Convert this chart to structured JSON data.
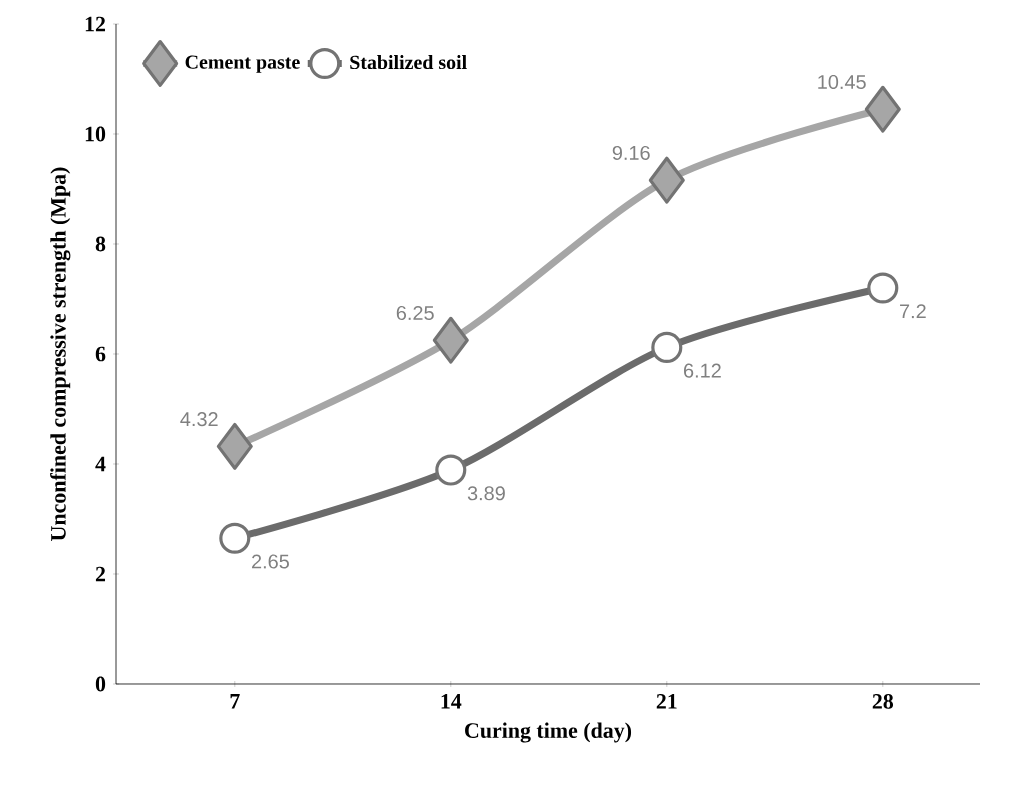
{
  "chart_data": {
    "type": "line",
    "xlabel": "Curing time (day)",
    "ylabel": "Unconfined compressive strength (Mpa)",
    "categories": [
      "7",
      "14",
      "21",
      "28"
    ],
    "series": [
      {
        "name": "Cement paste",
        "color": "#a6a6a6",
        "marker": "diamond",
        "values": [
          4.32,
          6.25,
          9.16,
          10.45
        ],
        "value_labels": [
          "4.32",
          "6.25",
          "9.16",
          "10.45"
        ]
      },
      {
        "name": "Stabilized soil",
        "color": "#6b6b6b",
        "marker": "circle",
        "values": [
          2.65,
          3.89,
          6.12,
          7.2
        ],
        "value_labels": [
          "2.65",
          "3.89",
          "6.12",
          "7.2"
        ]
      }
    ],
    "ylim": [
      0,
      12
    ],
    "yticks": [
      0,
      2,
      4,
      6,
      8,
      10,
      12
    ],
    "grid": false,
    "legend": "top left"
  }
}
